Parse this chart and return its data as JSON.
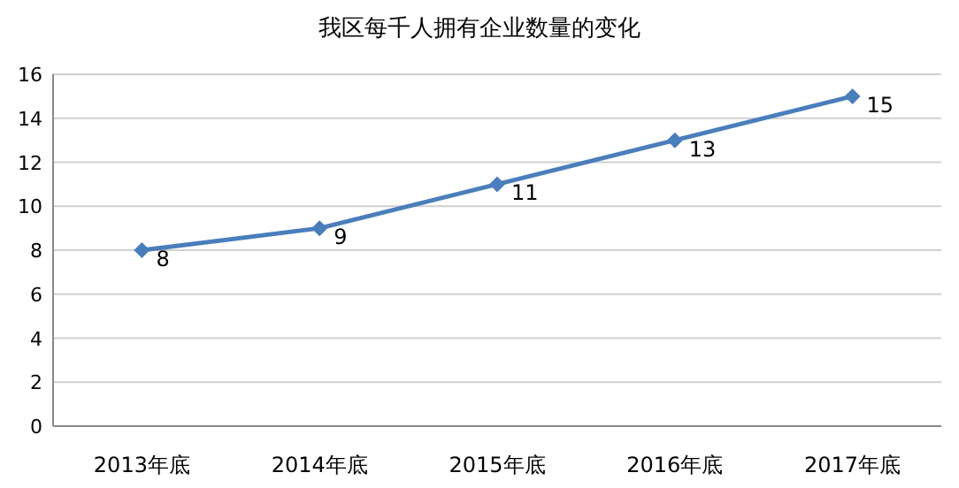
{
  "chart_data": {
    "type": "line",
    "title": "我区每千人拥有企业数量的变化",
    "categories": [
      "2013年底",
      "2014年底",
      "2015年底",
      "2016年底",
      "2017年底"
    ],
    "series": [
      {
        "color": "#4a7ebb",
        "values": [
          8,
          9,
          11,
          13,
          15
        ]
      }
    ],
    "ylim": [
      0,
      16
    ],
    "yticks": [
      0,
      2,
      4,
      6,
      8,
      10,
      12,
      14,
      16
    ],
    "grid": "y",
    "marker": "diamond",
    "line_style": "solid",
    "data_labels": true
  }
}
